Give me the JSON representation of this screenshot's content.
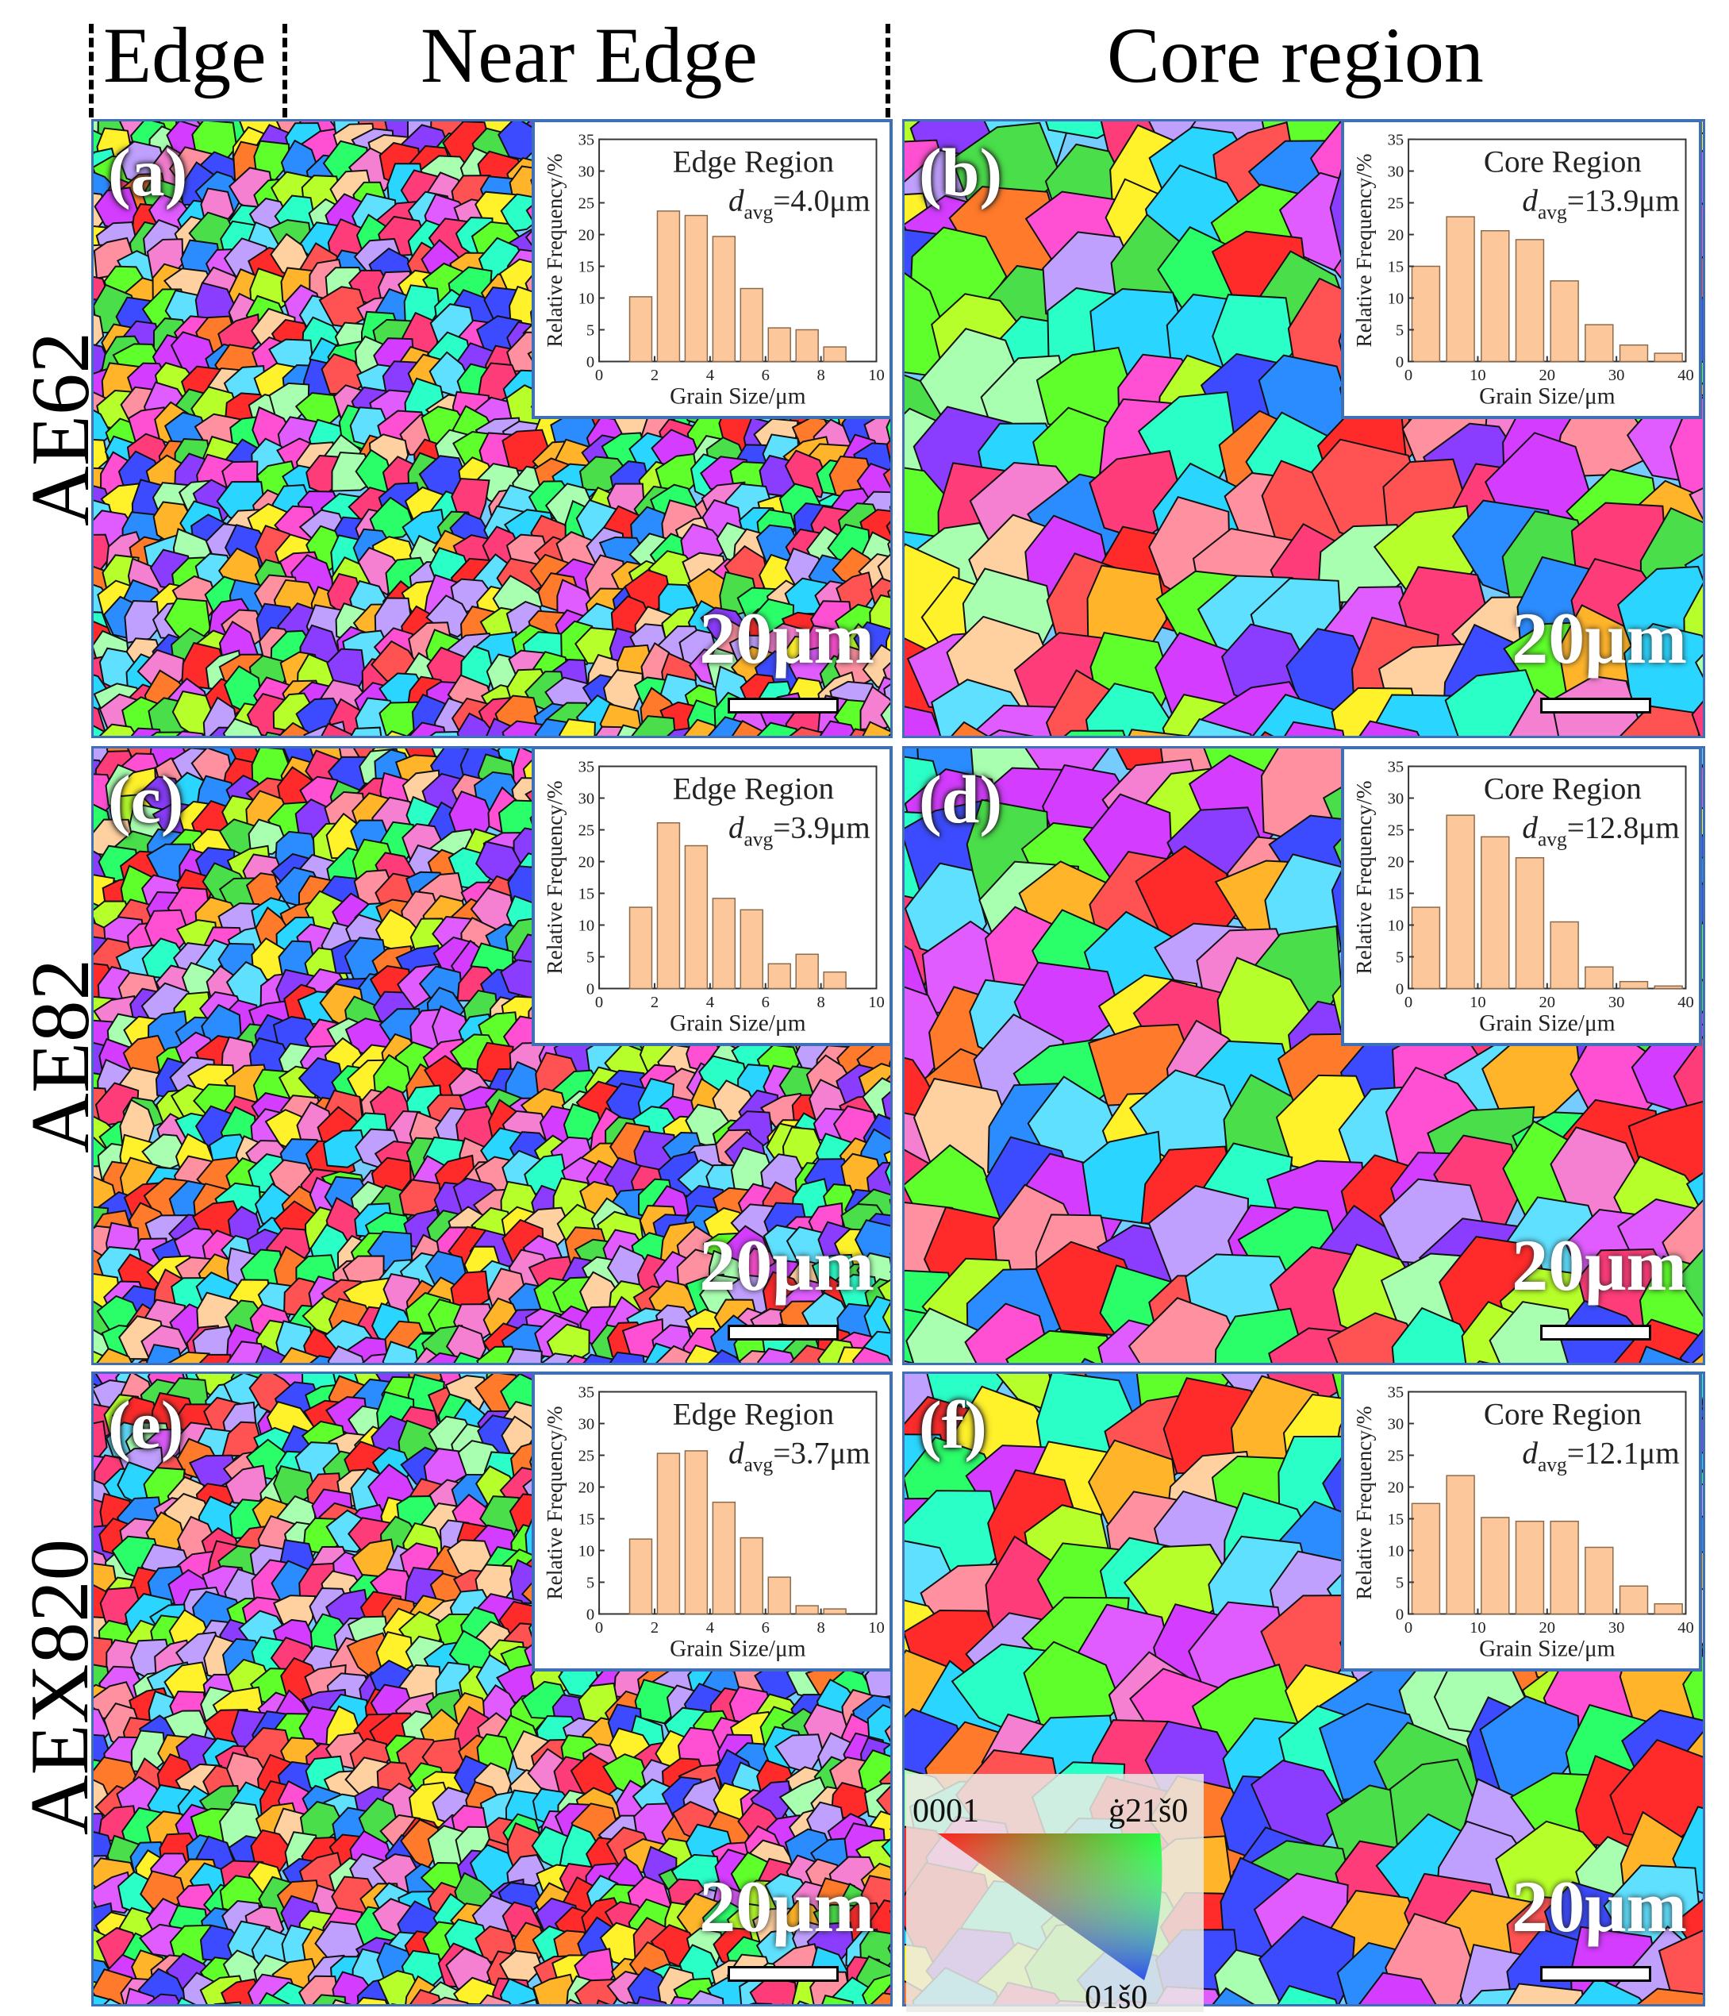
{
  "headers": {
    "edge": "Edge",
    "near_edge": "Near Edge",
    "core": "Core region"
  },
  "rows": [
    "AE62",
    "AE82",
    "AEX820"
  ],
  "scale_bar_label": "20μm",
  "ipf_legend": {
    "top_left": "0001",
    "top_right": "ġ21š0",
    "bottom": "01š0"
  },
  "colors": {
    "bar_fill": "#fcc79b",
    "bar_stroke": "#8a6a4a",
    "frame": "#3f6fb5"
  },
  "chart_data": [
    {
      "type": "bar",
      "panel": "(a)",
      "title": "Edge Region",
      "davg_value": "4.0μm",
      "xlabel": "Grain Size/μm",
      "ylabel": "Relative Frequency/%",
      "xlim": [
        0,
        10
      ],
      "ylim": [
        0,
        35
      ],
      "xticks": [
        0,
        2,
        4,
        6,
        8,
        10
      ],
      "yticks": [
        0,
        5,
        10,
        15,
        20,
        25,
        30,
        35
      ],
      "x": [
        1.5,
        2.5,
        3.5,
        4.5,
        5.5,
        6.5,
        7.5,
        8.5
      ],
      "bin_width": 0.8,
      "values": [
        10.2,
        23.7,
        23.0,
        19.7,
        11.5,
        5.3,
        5.0,
        2.3
      ]
    },
    {
      "type": "bar",
      "panel": "(b)",
      "title": "Core Region",
      "davg_value": "13.9μm",
      "xlabel": "Grain Size/μm",
      "ylabel": "Relative Frequency/%",
      "xlim": [
        0,
        40
      ],
      "ylim": [
        0,
        35
      ],
      "xticks": [
        0,
        10,
        20,
        30,
        40
      ],
      "yticks": [
        0,
        5,
        10,
        15,
        20,
        25,
        30,
        35
      ],
      "x": [
        2.5,
        7.5,
        12.5,
        17.5,
        22.5,
        27.5,
        32.5,
        37.5
      ],
      "bin_width": 4,
      "values": [
        15.0,
        22.8,
        20.6,
        19.2,
        12.7,
        5.8,
        2.6,
        1.3
      ]
    },
    {
      "type": "bar",
      "panel": "(c)",
      "title": "Edge Region",
      "davg_value": "3.9μm",
      "xlabel": "Grain Size/μm",
      "ylabel": "Relative Frequency/%",
      "xlim": [
        0,
        10
      ],
      "ylim": [
        0,
        35
      ],
      "xticks": [
        0,
        2,
        4,
        6,
        8,
        10
      ],
      "yticks": [
        0,
        5,
        10,
        15,
        20,
        25,
        30,
        35
      ],
      "x": [
        1.5,
        2.5,
        3.5,
        4.5,
        5.5,
        6.5,
        7.5,
        8.5
      ],
      "bin_width": 0.8,
      "values": [
        12.8,
        26.1,
        22.5,
        14.2,
        12.4,
        3.9,
        5.4,
        2.6
      ]
    },
    {
      "type": "bar",
      "panel": "(d)",
      "title": "Core Region",
      "davg_value": "12.8μm",
      "xlabel": "Grain Size/μm",
      "ylabel": "Relative Frequency/%",
      "xlim": [
        0,
        40
      ],
      "ylim": [
        0,
        35
      ],
      "xticks": [
        0,
        10,
        20,
        30,
        40
      ],
      "yticks": [
        0,
        5,
        10,
        15,
        20,
        25,
        30,
        35
      ],
      "x": [
        2.5,
        7.5,
        12.5,
        17.5,
        22.5,
        27.5,
        32.5,
        37.5
      ],
      "bin_width": 4,
      "values": [
        12.8,
        27.3,
        23.9,
        20.6,
        10.5,
        3.4,
        1.1,
        0.4
      ]
    },
    {
      "type": "bar",
      "panel": "(e)",
      "title": "Edge Region",
      "davg_value": "3.7μm",
      "xlabel": "Grain Size/μm",
      "ylabel": "Relative Frequency/%",
      "xlim": [
        0,
        10
      ],
      "ylim": [
        0,
        35
      ],
      "xticks": [
        0,
        2,
        4,
        6,
        8,
        10
      ],
      "yticks": [
        0,
        5,
        10,
        15,
        20,
        25,
        30,
        35
      ],
      "x": [
        1.5,
        2.5,
        3.5,
        4.5,
        5.5,
        6.5,
        7.5,
        8.5
      ],
      "bin_width": 0.8,
      "values": [
        11.8,
        25.3,
        25.7,
        17.6,
        12.0,
        5.8,
        1.3,
        0.8
      ]
    },
    {
      "type": "bar",
      "panel": "(f)",
      "title": "Core Region",
      "davg_value": "12.1μm",
      "xlabel": "Grain Size/μm",
      "ylabel": "Relative Frequency/%",
      "xlim": [
        0,
        40
      ],
      "ylim": [
        0,
        35
      ],
      "xticks": [
        0,
        10,
        20,
        30,
        40
      ],
      "yticks": [
        0,
        5,
        10,
        15,
        20,
        25,
        30,
        35
      ],
      "x": [
        2.5,
        7.5,
        12.5,
        17.5,
        22.5,
        27.5,
        32.5,
        37.5
      ],
      "bin_width": 4,
      "values": [
        17.4,
        21.8,
        15.2,
        14.6,
        14.6,
        10.5,
        4.4,
        1.6
      ]
    }
  ]
}
